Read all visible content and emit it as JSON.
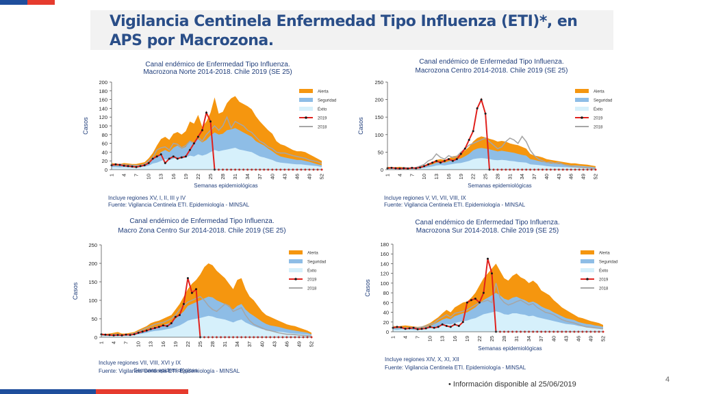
{
  "slide": {
    "title": "Vigilancia Centinela Enfermedad Tipo Influenza (ETI)*, en APS por Macrozona.",
    "footer_note": "Información disponible al 25/06/2019",
    "footer_bullet": "•",
    "page_number": "4",
    "colors": {
      "title": "#2a4e88",
      "red": "#e63b2e",
      "blue": "#1f4e9c"
    }
  },
  "chart_data": [
    {
      "type": "area",
      "title_line1": "Canal endémico de Enfermedad Tipo Influenza.",
      "title_line2": "Macrozona Norte 2014-2018. Chile 2019 (SE 25)",
      "ylabel": "Casos",
      "xlabel": "Semanas epidemiológicas",
      "ylim": [
        0,
        200
      ],
      "yticks": [
        "0",
        "20",
        "40",
        "60",
        "80",
        "100",
        "120",
        "140",
        "160",
        "180",
        "200"
      ],
      "xticks": [
        "1",
        "4",
        "7",
        "10",
        "13",
        "16",
        "19",
        "22",
        "25",
        "28",
        "31",
        "34",
        "37",
        "40",
        "43",
        "46",
        "49",
        "52"
      ],
      "legend": [
        "Alerta",
        "Seguridad",
        "Éxito",
        "2019",
        "2018"
      ],
      "note1": "Incluye regiones XV, I, II, III y IV",
      "note2": "Fuente: Vigilancia Centinela ETI. Epidemiología - MINSAL",
      "series": {
        "alerta": [
          15,
          14,
          13,
          15,
          14,
          13,
          13,
          15,
          17,
          26,
          38,
          55,
          70,
          75,
          68,
          82,
          86,
          80,
          88,
          110,
          105,
          125,
          98,
          110,
          130,
          165,
          128,
          132,
          152,
          163,
          168,
          155,
          150,
          145,
          138,
          122,
          110,
          100,
          90,
          82,
          65,
          58,
          55,
          50,
          45,
          42,
          42,
          40,
          35,
          30,
          25,
          20
        ],
        "seguridad": [
          10,
          9,
          9,
          10,
          9,
          9,
          9,
          10,
          12,
          16,
          24,
          30,
          40,
          45,
          40,
          50,
          55,
          48,
          52,
          65,
          62,
          70,
          62,
          68,
          78,
          85,
          80,
          82,
          90,
          92,
          95,
          90,
          85,
          80,
          75,
          65,
          60,
          55,
          48,
          42,
          35,
          30,
          28,
          26,
          24,
          22,
          22,
          20,
          18,
          15,
          12,
          10
        ],
        "exito": [
          6,
          6,
          5,
          6,
          5,
          5,
          5,
          6,
          7,
          9,
          14,
          16,
          20,
          24,
          22,
          25,
          28,
          25,
          28,
          32,
          30,
          35,
          32,
          35,
          40,
          45,
          42,
          44,
          46,
          48,
          50,
          46,
          44,
          42,
          40,
          35,
          30,
          28,
          25,
          22,
          18,
          16,
          15,
          14,
          13,
          12,
          12,
          11,
          10,
          9,
          8,
          6
        ],
        "y2018": [
          12,
          11,
          12,
          11,
          10,
          10,
          9,
          10,
          12,
          20,
          28,
          45,
          50,
          52,
          45,
          60,
          58,
          50,
          55,
          65,
          60,
          75,
          65,
          80,
          90,
          100,
          90,
          100,
          120,
          95,
          110,
          105,
          100,
          90,
          85,
          75,
          65,
          60,
          52,
          48,
          40,
          38,
          38,
          35,
          32,
          30,
          28,
          26,
          22,
          20,
          18,
          14
        ],
        "y2019": [
          10,
          12,
          11,
          9,
          8,
          7,
          6,
          8,
          10,
          15,
          25,
          30,
          35,
          15,
          25,
          30,
          25,
          28,
          30,
          45,
          60,
          75,
          90,
          130,
          110,
          0
        ]
      }
    },
    {
      "type": "area",
      "title_line1": "Canal endémico de Enfermedad Tipo Influenza.",
      "title_line2": "Macrozona Centro 2014-2018. Chile 2019 (SE 25)",
      "ylabel": "Casos",
      "xlabel": "Semanas epidemiológicas",
      "ylim": [
        0,
        250
      ],
      "yticks": [
        "0",
        "50",
        "100",
        "150",
        "200",
        "250"
      ],
      "xticks": [
        "1",
        "4",
        "7",
        "10",
        "13",
        "16",
        "19",
        "22",
        "25",
        "28",
        "31",
        "34",
        "37",
        "40",
        "43",
        "46",
        "49",
        "52"
      ],
      "legend": [
        "Alerta",
        "Seguridad",
        "Éxito",
        "2019",
        "2018"
      ],
      "note1": "Incluye regiones V, VI, VII, VIII, IX",
      "note2": "Fuente: Vigilancia Centinela ETI. Epidemiología  - MINSAL",
      "series": {
        "alerta": [
          8,
          7,
          7,
          8,
          7,
          6,
          6,
          7,
          9,
          12,
          18,
          22,
          28,
          30,
          28,
          32,
          38,
          40,
          45,
          55,
          65,
          80,
          90,
          95,
          92,
          88,
          85,
          80,
          82,
          80,
          75,
          72,
          70,
          65,
          60,
          45,
          40,
          38,
          35,
          30,
          28,
          26,
          24,
          22,
          20,
          18,
          18,
          16,
          15,
          14,
          12,
          10
        ],
        "seguridad": [
          5,
          5,
          5,
          5,
          5,
          4,
          4,
          5,
          6,
          8,
          12,
          15,
          20,
          22,
          20,
          24,
          28,
          30,
          32,
          38,
          45,
          55,
          60,
          62,
          60,
          58,
          55,
          52,
          54,
          52,
          50,
          48,
          45,
          42,
          40,
          30,
          28,
          25,
          22,
          20,
          18,
          17,
          16,
          15,
          14,
          12,
          12,
          11,
          10,
          9,
          8,
          6
        ],
        "exito": [
          3,
          3,
          3,
          3,
          3,
          2,
          2,
          3,
          4,
          5,
          7,
          9,
          12,
          13,
          12,
          14,
          16,
          18,
          19,
          22,
          25,
          30,
          32,
          33,
          32,
          30,
          28,
          27,
          28,
          27,
          25,
          24,
          22,
          21,
          20,
          15,
          14,
          13,
          12,
          10,
          9,
          8,
          8,
          7,
          7,
          6,
          6,
          5,
          5,
          5,
          4,
          3
        ],
        "y2018": [
          5,
          4,
          5,
          4,
          6,
          5,
          4,
          6,
          10,
          15,
          25,
          30,
          45,
          35,
          30,
          40,
          35,
          38,
          50,
          60,
          70,
          75,
          80,
          85,
          90,
          80,
          70,
          60,
          65,
          80,
          90,
          85,
          75,
          95,
          80,
          55,
          40,
          30,
          25,
          20,
          22,
          18,
          20,
          15,
          12,
          10,
          8,
          7,
          6,
          5,
          4,
          3
        ],
        "y2019": [
          4,
          5,
          4,
          3,
          4,
          3,
          5,
          4,
          6,
          10,
          15,
          20,
          25,
          20,
          25,
          30,
          25,
          30,
          45,
          60,
          85,
          110,
          175,
          200,
          160,
          0
        ]
      }
    },
    {
      "type": "area",
      "title_line1": "Canal endémico de Enfermedad Tipo Influenza.",
      "title_line2": "Macro Zona Centro Sur 2014-2018. Chile 2019 (SE 25)",
      "ylabel": "Casos",
      "xlabel": "Semanas epidemiológicas",
      "ylim": [
        0,
        250
      ],
      "yticks": [
        "0",
        "50",
        "100",
        "150",
        "200",
        "250"
      ],
      "xticks": [
        "1",
        "4",
        "7",
        "10",
        "13",
        "16",
        "19",
        "22",
        "25",
        "28",
        "31",
        "34",
        "37",
        "40",
        "43",
        "46",
        "49",
        "52"
      ],
      "legend": [
        "Alerta",
        "Seguridad",
        "Éxito",
        "2019",
        "2018"
      ],
      "note1": "Incluye regiones VII, VIII, XVI y IX",
      "note2": "Fuente: Vigilancia Centinela ETI. Epidemiología - MINSAL",
      "series": {
        "alerta": [
          10,
          9,
          10,
          12,
          14,
          10,
          10,
          12,
          14,
          20,
          25,
          30,
          38,
          42,
          45,
          50,
          55,
          60,
          75,
          90,
          110,
          130,
          145,
          155,
          170,
          190,
          200,
          195,
          180,
          170,
          160,
          145,
          130,
          155,
          160,
          130,
          110,
          100,
          85,
          70,
          60,
          55,
          50,
          45,
          40,
          35,
          32,
          30,
          26,
          22,
          18,
          12
        ],
        "seguridad": [
          7,
          6,
          7,
          8,
          9,
          7,
          7,
          8,
          10,
          13,
          16,
          20,
          25,
          28,
          30,
          33,
          36,
          40,
          50,
          60,
          70,
          85,
          90,
          95,
          100,
          105,
          110,
          108,
          100,
          95,
          90,
          82,
          75,
          85,
          90,
          75,
          65,
          58,
          50,
          42,
          36,
          32,
          30,
          28,
          25,
          22,
          20,
          18,
          16,
          14,
          12,
          8
        ],
        "exito": [
          4,
          4,
          4,
          5,
          5,
          4,
          4,
          5,
          6,
          8,
          10,
          12,
          15,
          17,
          18,
          20,
          22,
          24,
          28,
          32,
          38,
          45,
          48,
          50,
          52,
          55,
          58,
          56,
          52,
          50,
          48,
          44,
          40,
          45,
          48,
          40,
          35,
          30,
          26,
          22,
          20,
          18,
          16,
          15,
          14,
          12,
          11,
          10,
          9,
          8,
          7,
          5
        ],
        "y2018": [
          6,
          5,
          6,
          7,
          8,
          6,
          6,
          8,
          10,
          15,
          20,
          25,
          30,
          35,
          38,
          40,
          45,
          50,
          60,
          75,
          85,
          95,
          100,
          105,
          110,
          100,
          85,
          75,
          70,
          80,
          90,
          85,
          70,
          75,
          80,
          60,
          45,
          35,
          30,
          25,
          20,
          18,
          15,
          12,
          10,
          8,
          8,
          7,
          6,
          5,
          4,
          3
        ],
        "y2019": [
          8,
          7,
          6,
          5,
          6,
          5,
          7,
          6,
          8,
          12,
          15,
          18,
          22,
          25,
          28,
          32,
          30,
          38,
          55,
          60,
          90,
          160,
          120,
          130,
          0
        ]
      }
    },
    {
      "type": "area",
      "title_line1": "Canal endémico de Enfermedad Tipo Influenza.",
      "title_line2": "Macrozona Sur 2014-2018. Chile 2019 (SE 25)",
      "ylabel": "Casos",
      "xlabel": "Semanas epidemiológicas",
      "ylim": [
        0,
        180
      ],
      "yticks": [
        "0",
        "20",
        "40",
        "60",
        "80",
        "100",
        "120",
        "140",
        "160",
        "180"
      ],
      "xticks": [
        "1",
        "4",
        "7",
        "10",
        "13",
        "16",
        "19",
        "22",
        "25",
        "28",
        "31",
        "34",
        "37",
        "40",
        "43",
        "46",
        "49",
        "52"
      ],
      "legend": [
        "Alerta",
        "Seguridad",
        "Éxito",
        "2019",
        "2018"
      ],
      "note1": "Incluye regiones XIV, X, XI, XII",
      "note2": "Fuente: Vigilancia Centinela ETI. Epidemiología - MINSAL",
      "series": {
        "alerta": [
          12,
          11,
          12,
          13,
          12,
          11,
          10,
          11,
          14,
          18,
          24,
          30,
          38,
          45,
          40,
          50,
          55,
          60,
          62,
          70,
          80,
          95,
          110,
          120,
          130,
          140,
          125,
          110,
          105,
          115,
          120,
          112,
          108,
          100,
          105,
          98,
          85,
          80,
          75,
          65,
          58,
          50,
          45,
          40,
          35,
          30,
          28,
          25,
          22,
          20,
          18,
          14
        ],
        "seguridad": [
          8,
          7,
          8,
          9,
          8,
          7,
          7,
          8,
          10,
          12,
          16,
          20,
          25,
          28,
          26,
          32,
          35,
          38,
          40,
          45,
          50,
          58,
          65,
          70,
          75,
          80,
          75,
          68,
          65,
          70,
          72,
          68,
          65,
          60,
          62,
          58,
          52,
          48,
          45,
          40,
          36,
          32,
          28,
          26,
          24,
          20,
          18,
          16,
          15,
          13,
          12,
          10
        ],
        "exito": [
          5,
          4,
          5,
          5,
          5,
          4,
          4,
          5,
          6,
          7,
          9,
          11,
          14,
          16,
          15,
          18,
          20,
          22,
          23,
          26,
          28,
          32,
          36,
          38,
          40,
          42,
          40,
          36,
          35,
          38,
          38,
          36,
          35,
          32,
          33,
          30,
          28,
          26,
          24,
          22,
          20,
          18,
          16,
          15,
          14,
          12,
          11,
          10,
          9,
          8,
          7,
          6
        ],
        "y2018": [
          10,
          9,
          8,
          7,
          8,
          9,
          8,
          10,
          12,
          15,
          18,
          25,
          30,
          35,
          30,
          38,
          40,
          42,
          45,
          50,
          55,
          60,
          62,
          65,
          60,
          100,
          70,
          60,
          55,
          58,
          62,
          65,
          60,
          55,
          58,
          50,
          45,
          40,
          38,
          35,
          30,
          25,
          22,
          20,
          18,
          15,
          12,
          10,
          9,
          8,
          7,
          6
        ],
        "y2019": [
          8,
          10,
          9,
          6,
          7,
          8,
          5,
          6,
          7,
          10,
          8,
          10,
          15,
          12,
          10,
          15,
          12,
          20,
          60,
          65,
          68,
          60,
          80,
          150,
          120,
          0
        ]
      }
    }
  ]
}
